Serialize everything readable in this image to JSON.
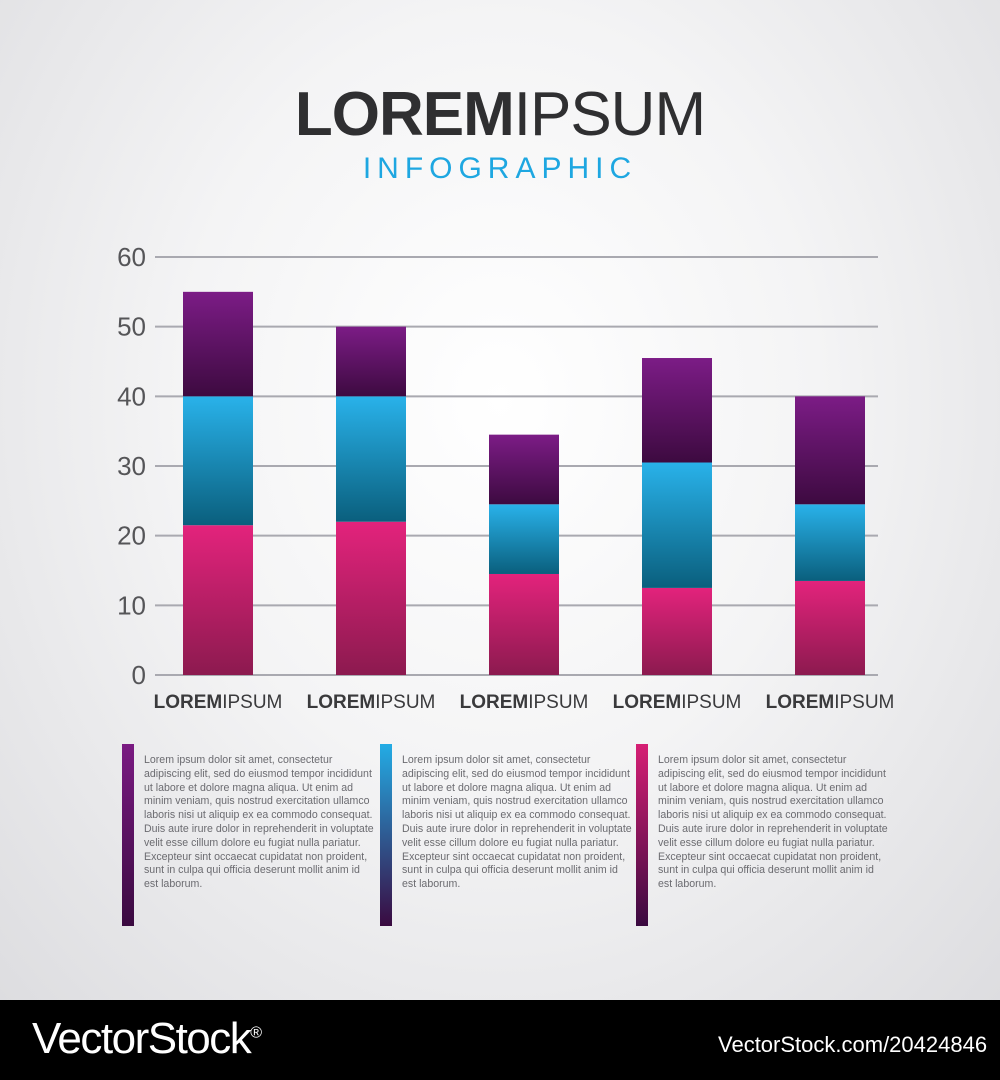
{
  "header": {
    "title_bold": "LOREM",
    "title_light": "IPSUM",
    "subtitle": "INFOGRAPHIC"
  },
  "chart_data": {
    "type": "bar",
    "stacked": true,
    "categories": [
      "LOREMIPSUM",
      "LOREMIPSUM",
      "LOREMIPSUM",
      "LOREMIPSUM",
      "LOREMIPSUM"
    ],
    "category_label_parts": {
      "bold": "LOREM",
      "light": "IPSUM"
    },
    "series": [
      {
        "color": "#d61f74",
        "values": [
          21.5,
          22,
          14.5,
          12.5,
          13.5
        ]
      },
      {
        "color": "#23ace5",
        "values": [
          18.5,
          18,
          10,
          18,
          11
        ]
      },
      {
        "color": "#7a1a82",
        "values": [
          15,
          10,
          10,
          15,
          15.5
        ]
      }
    ],
    "ylim": [
      0,
      60
    ],
    "yticks": [
      0,
      10,
      20,
      30,
      40,
      50,
      60
    ],
    "grid": true,
    "xlabel": "",
    "ylabel": ""
  },
  "text_columns": [
    {
      "accent": "#7a1a82",
      "text": "Lorem ipsum dolor sit amet, consectetur adipiscing elit, sed do eiusmod tempor incididunt ut labore et dolore magna aliqua. Ut enim ad minim veniam, quis nostrud exercitation ullamco laboris nisi ut aliquip ex ea commodo consequat. Duis aute irure dolor in reprehenderit in voluptate velit esse cillum dolore eu fugiat nulla pariatur. Excepteur sint occaecat cupidatat non proident, sunt in culpa qui officia deserunt mollit anim id est laborum."
    },
    {
      "accent": "#23ace5",
      "text": "Lorem ipsum dolor sit amet, consectetur adipiscing elit, sed do eiusmod tempor incididunt ut labore et dolore magna aliqua. Ut enim ad minim veniam, quis nostrud exercitation ullamco laboris nisi ut aliquip ex ea commodo consequat. Duis aute irure dolor in reprehenderit in voluptate velit esse cillum dolore eu fugiat nulla pariatur. Excepteur sint occaecat cupidatat non proident, sunt in culpa qui officia deserunt mollit anim id est laborum."
    },
    {
      "accent": "#d61f74",
      "text": "Lorem ipsum dolor sit amet, consectetur adipiscing elit, sed do eiusmod tempor incididunt ut labore et dolore magna aliqua. Ut enim ad minim veniam, quis nostrud exercitation ullamco laboris nisi ut aliquip ex ea commodo consequat. Duis aute irure dolor in reprehenderit in voluptate velit esse cillum dolore eu fugiat nulla pariatur. Excepteur sint occaecat cupidatat non proident, sunt in culpa qui officia deserunt mollit anim id est laborum."
    }
  ],
  "watermark": {
    "logo": "VectorStock",
    "registered": "®",
    "url": "VectorStock.com/20424846"
  }
}
